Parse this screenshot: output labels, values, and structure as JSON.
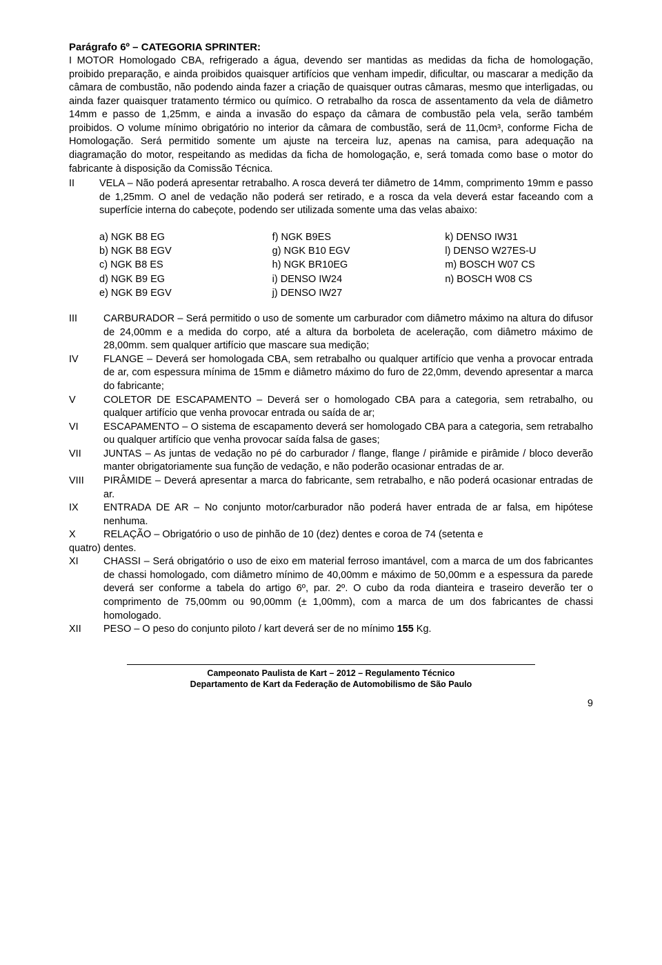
{
  "title": "Parágrafo 6º – CATEGORIA SPRINTER:",
  "sectionI": "I       MOTOR Homologado CBA, refrigerado a água, devendo ser mantidas as medidas da ficha de homologação, proibido preparação, e ainda proibidos quaisquer artifícios que venham impedir, dificultar, ou mascarar a medição da câmara de combustão, não podendo ainda fazer a criação de quaisquer outras câmaras, mesmo que interligadas, ou ainda fazer quaisquer tratamento térmico ou químico. O retrabalho da rosca de assentamento da vela de diâmetro 14mm e passo de 1,25mm, e ainda a invasão do espaço da câmara de combustão pela vela, serão também proibidos. O volume mínimo obrigatório no interior da câmara de combustão, será de 11,0cm³, conforme Ficha de Homologação. Será permitido somente um ajuste na terceira luz, apenas na camisa, para adequação na diagramação do motor, respeitando as medidas da ficha de homologação, e, será tomada como base o motor do fabricante à disposição da Comissão Técnica.",
  "sectionII_num": "II",
  "sectionII_text": "VELA – Não poderá apresentar retrabalho. A rosca deverá ter diâmetro de 14mm, comprimento 19mm e passo de 1,25mm. O anel de vedação não poderá ser retirado, e a rosca da vela deverá estar faceando com a superfície interna do cabeçote, podendo ser utilizada somente uma das velas abaixo:",
  "col1": [
    "a)  NGK B8 EG",
    "b)  NGK B8 EGV",
    "c)  NGK B8 ES",
    "d)  NGK B9 EG",
    "e)  NGK B9 EGV"
  ],
  "col2": [
    "f)  NGK B9ES",
    "g)  NGK B10 EGV",
    "h)  NGK BR10EG",
    "i)  DENSO IW24",
    "j)  DENSO IW27"
  ],
  "col3": [
    "k)  DENSO IW31",
    "l)  DENSO W27ES-U",
    "m) BOSCH W07 CS",
    "n)  BOSCH W08 CS"
  ],
  "items": [
    {
      "num": "III",
      "text": "CARBURADOR – Será permitido o uso de somente um carburador com diâmetro máximo na altura do difusor de 24,00mm e a medida do corpo, até a altura da borboleta de aceleração, com diâmetro máximo de 28,00mm. sem qualquer artifício que mascare sua medição;"
    },
    {
      "num": "IV",
      "text": "FLANGE – Deverá ser homologada CBA, sem retrabalho ou qualquer artifício que venha a provocar entrada de ar, com espessura mínima de 15mm e diâmetro máximo do furo de 22,0mm, devendo apresentar a marca do fabricante;"
    },
    {
      "num": "V",
      "text": "COLETOR DE ESCAPAMENTO – Deverá ser o homologado CBA para a categoria, sem retrabalho, ou qualquer artifício que venha provocar entrada ou saída de ar;"
    },
    {
      "num": "VI",
      "text": "ESCAPAMENTO – O sistema de escapamento deverá ser homologado CBA para a categoria, sem retrabalho ou qualquer artifício que venha provocar saída falsa de gases;"
    },
    {
      "num": "VII",
      "text": "JUNTAS – As juntas de vedação no pé do carburador / flange, flange / pirâmide e pirâmide / bloco deverão manter obrigatoriamente sua função de vedação, e não poderão ocasionar entradas de ar."
    },
    {
      "num": "VIII",
      "text": "PIRÂMIDE – Deverá apresentar a marca do fabricante, sem retrabalho, e não poderá ocasionar entradas de ar."
    },
    {
      "num": "IX",
      "text": "ENTRADA DE AR – No conjunto motor/carburador não poderá haver entrada de ar falsa, em hipótese nenhuma."
    }
  ],
  "itemX_num": "X",
  "itemX_text": "RELAÇÃO – Obrigatório o uso de pinhão de 10 (dez) dentes e coroa de 74 (setenta e",
  "itemX_cont": "quatro) dentes.",
  "itemXI_num": "XI",
  "itemXI_text": "CHASSI – Será obrigatório o uso de eixo em material ferroso imantável, com a marca de um dos fabricantes de chassi homologado, com diâmetro mínimo de 40,00mm e máximo de 50,00mm e a espessura da parede deverá ser conforme a tabela do artigo 6º, par. 2º. O cubo da roda dianteira e traseiro deverão ter o comprimento de 75,00mm ou 90,00mm (± 1,00mm), com a marca de um dos fabricantes de chassi homologado.",
  "itemXII_num": "XII",
  "itemXII_pre": "PESO – O peso do conjunto piloto / kart deverá ser de no mínimo ",
  "itemXII_bold": "155",
  "itemXII_post": " Kg.",
  "footer1": "Campeonato Paulista de Kart – 2012 – Regulamento Técnico",
  "footer2": "Departamento de Kart da Federação de Automobilismo de São Paulo",
  "pageNum": "9"
}
